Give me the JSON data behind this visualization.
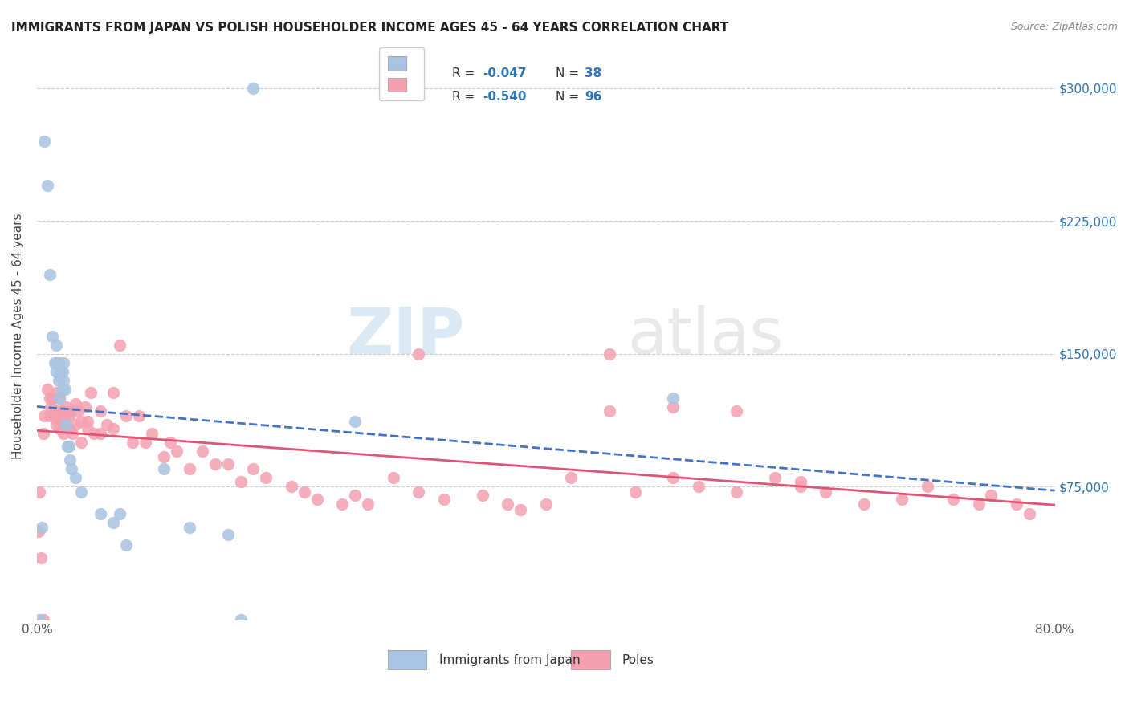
{
  "title": "IMMIGRANTS FROM JAPAN VS POLISH HOUSEHOLDER INCOME AGES 45 - 64 YEARS CORRELATION CHART",
  "source": "Source: ZipAtlas.com",
  "ylabel": "Householder Income Ages 45 - 64 years",
  "legend_japan": "Immigrants from Japan",
  "legend_poles": "Poles",
  "R_japan": "-0.047",
  "N_japan": "38",
  "R_poles": "-0.540",
  "N_poles": "96",
  "color_japan": "#a8c4e0",
  "color_poles": "#f4a0b0",
  "line_japan": "#4472C4",
  "line_poles": "#e05575",
  "background_color": "#ffffff",
  "watermark_zip": "ZIP",
  "watermark_atlas": "atlas",
  "japan_x": [
    0.2,
    0.4,
    0.6,
    0.8,
    1.0,
    1.2,
    1.4,
    1.5,
    1.5,
    1.6,
    1.7,
    1.7,
    1.8,
    1.8,
    1.9,
    2.0,
    2.0,
    2.1,
    2.1,
    2.2,
    2.3,
    2.4,
    2.5,
    2.6,
    2.7,
    3.0,
    3.5,
    5.0,
    6.0,
    6.5,
    7.0,
    10.0,
    12.0,
    15.0,
    16.0,
    17.0,
    25.0,
    50.0
  ],
  "japan_y": [
    0,
    52000,
    270000,
    245000,
    195000,
    160000,
    145000,
    155000,
    140000,
    145000,
    135000,
    145000,
    138000,
    125000,
    140000,
    130000,
    140000,
    135000,
    145000,
    130000,
    110000,
    98000,
    98000,
    90000,
    85000,
    80000,
    72000,
    60000,
    55000,
    60000,
    42000,
    85000,
    52000,
    48000,
    0,
    300000,
    112000,
    125000
  ],
  "poles_x": [
    0.1,
    0.2,
    0.3,
    0.5,
    0.6,
    0.8,
    1.0,
    1.0,
    1.1,
    1.2,
    1.3,
    1.5,
    1.5,
    1.6,
    1.7,
    1.8,
    1.8,
    1.9,
    2.0,
    2.0,
    2.0,
    2.1,
    2.2,
    2.3,
    2.4,
    2.5,
    2.5,
    2.6,
    2.8,
    3.0,
    3.0,
    3.2,
    3.5,
    3.5,
    3.8,
    4.0,
    4.0,
    4.2,
    4.5,
    5.0,
    5.0,
    5.5,
    6.0,
    6.0,
    6.5,
    7.0,
    7.5,
    8.0,
    8.5,
    9.0,
    10.0,
    10.5,
    11.0,
    12.0,
    13.0,
    14.0,
    15.0,
    16.0,
    17.0,
    18.0,
    20.0,
    21.0,
    22.0,
    24.0,
    25.0,
    26.0,
    28.0,
    30.0,
    32.0,
    35.0,
    37.0,
    38.0,
    40.0,
    42.0,
    45.0,
    47.0,
    50.0,
    52.0,
    55.0,
    58.0,
    60.0,
    62.0,
    65.0,
    68.0,
    70.0,
    72.0,
    74.0,
    75.0,
    77.0,
    78.0,
    0.5,
    30.0,
    45.0,
    50.0,
    55.0,
    60.0
  ],
  "poles_y": [
    50000,
    72000,
    35000,
    105000,
    115000,
    130000,
    115000,
    125000,
    120000,
    125000,
    115000,
    110000,
    128000,
    118000,
    112000,
    108000,
    125000,
    112000,
    118000,
    108000,
    118000,
    105000,
    115000,
    120000,
    115000,
    108000,
    115000,
    118000,
    105000,
    122000,
    110000,
    118000,
    100000,
    112000,
    120000,
    112000,
    108000,
    128000,
    105000,
    105000,
    118000,
    110000,
    108000,
    128000,
    155000,
    115000,
    100000,
    115000,
    100000,
    105000,
    92000,
    100000,
    95000,
    85000,
    95000,
    88000,
    88000,
    78000,
    85000,
    80000,
    75000,
    72000,
    68000,
    65000,
    70000,
    65000,
    80000,
    72000,
    68000,
    70000,
    65000,
    62000,
    65000,
    80000,
    118000,
    72000,
    80000,
    75000,
    72000,
    80000,
    75000,
    72000,
    65000,
    68000,
    75000,
    68000,
    65000,
    70000,
    65000,
    60000,
    0,
    150000,
    150000,
    120000,
    118000,
    78000
  ]
}
